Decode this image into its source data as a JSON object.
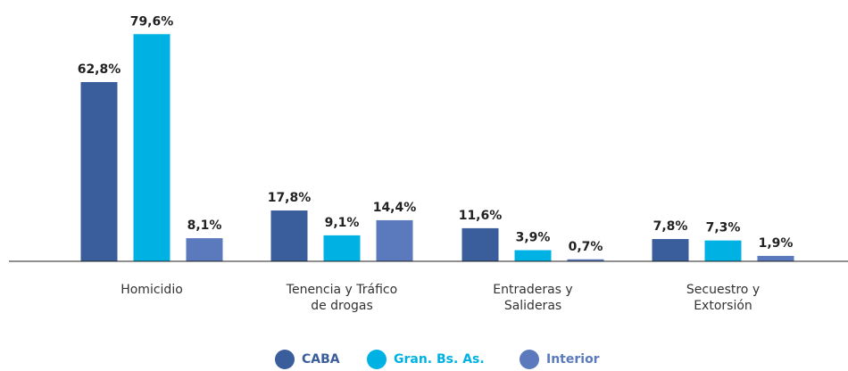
{
  "chart_data": {
    "type": "bar",
    "categories": [
      "Homicidio",
      "Tenencia y Tráfico\nde drogas",
      "Entraderas y\nSalideras",
      "Secuestro y\nExtorsión"
    ],
    "series": [
      {
        "name": "CABA",
        "color": "#3a5d9c",
        "values": [
          62.8,
          17.8,
          11.6,
          7.8
        ],
        "value_labels": [
          "62,8%",
          "17,8%",
          "11,6%",
          "7,8%"
        ]
      },
      {
        "name": "Gran. Bs. As.",
        "color": "#00b2e3",
        "values": [
          79.6,
          9.1,
          3.9,
          7.3
        ],
        "value_labels": [
          "79,6%",
          "9,1%",
          "3,9%",
          "7,3%"
        ]
      },
      {
        "name": "Interior",
        "color": "#5b7abd",
        "values": [
          8.1,
          14.4,
          0.7,
          1.9
        ],
        "value_labels": [
          "8,1%",
          "14,4%",
          "0,7%",
          "1,9%"
        ]
      }
    ]
  }
}
